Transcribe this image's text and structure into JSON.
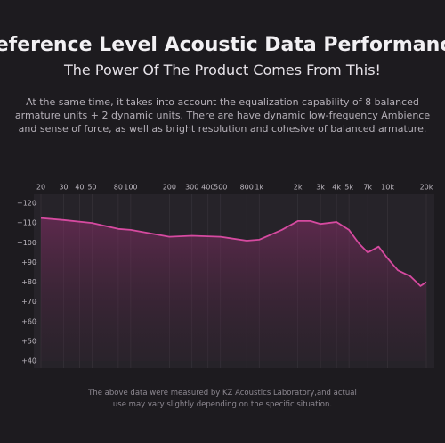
{
  "header": {
    "title": "Reference Level Acoustic Data Performance",
    "subtitle": "The Power Of The Product Comes From This!"
  },
  "description": [
    "At the same time, it takes into account the equalization capability of 8 balanced",
    "armature units + 2 dynamic units. There are have dynamic low-frequency Ambience",
    "and sense of force, as well as bright resolution and cohesive of balanced armature."
  ],
  "chart_data": {
    "type": "line",
    "log_x": true,
    "grid": true,
    "x": [
      20,
      30,
      50,
      80,
      100,
      200,
      300,
      500,
      800,
      1000,
      1500,
      2000,
      2500,
      3000,
      4000,
      5000,
      6000,
      7000,
      8500,
      10000,
      12000,
      15000,
      18000,
      20000
    ],
    "series": [
      {
        "color": "#d64aa0",
        "values": [
          112.5,
          111.5,
          110,
          107,
          106.5,
          103,
          103.5,
          103,
          101,
          101.5,
          106.5,
          111,
          111,
          109.5,
          110.5,
          106.5,
          99.5,
          95,
          98,
          92,
          86,
          83,
          78,
          80
        ]
      }
    ],
    "xlim": [
      20,
      20000
    ],
    "xticks": [
      20,
      30,
      40,
      50,
      80,
      100,
      200,
      300,
      400,
      500,
      800,
      {
        "value": 1000,
        "label": "1k"
      },
      {
        "value": 2000,
        "label": "2k"
      },
      {
        "value": 3000,
        "label": "3k"
      },
      {
        "value": 4000,
        "label": "4k"
      },
      {
        "value": 5000,
        "label": "5k"
      },
      {
        "value": 7000,
        "label": "7k"
      },
      {
        "value": 10000,
        "label": "10k"
      },
      {
        "value": 20000,
        "label": "20k"
      }
    ],
    "ylim": [
      40,
      120
    ],
    "yticks": [
      {
        "value": 120,
        "label": "+120"
      },
      {
        "value": 110,
        "label": "+110"
      },
      {
        "value": 100,
        "label": "+100"
      },
      {
        "value": 90,
        "label": "+90"
      },
      {
        "value": 80,
        "label": "+80"
      },
      {
        "value": 70,
        "label": "+70"
      },
      {
        "value": 60,
        "label": "+60"
      },
      {
        "value": 50,
        "label": "+50"
      },
      {
        "value": 40,
        "label": "+40"
      }
    ]
  },
  "footnote": [
    "The above data were measured by KZ Acoustics Laboratory,and actual",
    "use may vary slightly depending on the specific situation."
  ]
}
